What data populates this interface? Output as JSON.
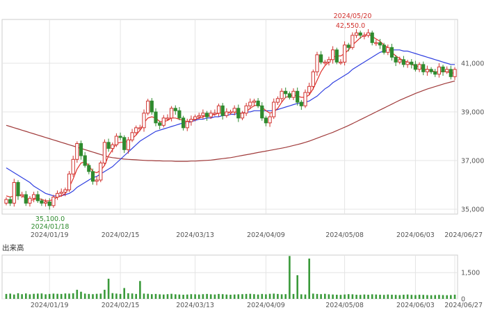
{
  "chart_data": [
    {
      "type": "candlestick",
      "x_ticks": [
        "2024/01/19",
        "2024/02/15",
        "2024/03/13",
        "2024/04/09",
        "2024/05/08",
        "2024/06/03",
        "2024/06/27"
      ],
      "y_ticks": [
        "35,000",
        "37,000",
        "39,000",
        "41,000"
      ],
      "ylim": [
        34800,
        42800
      ],
      "annotations": {
        "high": {
          "date": "2024/05/20",
          "value": "42,550.0"
        },
        "low": {
          "date": "2024/01/18",
          "value": "35,100.0"
        }
      },
      "close": [
        35400,
        35250,
        36100,
        35550,
        35600,
        35250,
        35450,
        35600,
        35350,
        35250,
        35300,
        35150,
        35500,
        35650,
        35700,
        35800,
        36450,
        37050,
        37700,
        37200,
        36800,
        36550,
        36150,
        36200,
        36900,
        37750,
        37500,
        37650,
        38000,
        37950,
        37450,
        37850,
        38150,
        38350,
        38350,
        38950,
        39450,
        39000,
        38550,
        38450,
        38750,
        38750,
        39150,
        39050,
        38750,
        38350,
        38600,
        38700,
        38800,
        38850,
        38950,
        38800,
        38950,
        38950,
        39250,
        38850,
        39000,
        39000,
        39150,
        38750,
        38950,
        39250,
        39400,
        39450,
        39250,
        38750,
        38550,
        38800,
        39400,
        39550,
        39850,
        39750,
        39600,
        39850,
        39400,
        39250,
        39800,
        40050,
        40650,
        41350,
        41050,
        41050,
        41150,
        41550,
        41050,
        41050,
        41750,
        41650,
        42150,
        42250,
        42150,
        42150,
        42250,
        41850,
        41850,
        41750,
        41450,
        41650,
        41250,
        41050,
        41150,
        40950,
        41050,
        40950,
        40750,
        40950,
        40650,
        40750,
        40650,
        40550,
        40850,
        40650,
        40750,
        40450,
        40750
      ],
      "ma_short": [
        35550,
        35500,
        35550,
        35600,
        35550,
        35450,
        35350,
        35400,
        35450,
        35400,
        35350,
        35350,
        35400,
        35500,
        35550,
        35650,
        35900,
        36250,
        36650,
        36900,
        36950,
        36800,
        36550,
        36500,
        36600,
        36800,
        37200,
        37450,
        37700,
        37750,
        37750,
        37800,
        37900,
        38050,
        38250,
        38550,
        38750,
        38800,
        38750,
        38600,
        38600,
        38650,
        38750,
        38750,
        38700,
        38650,
        38600,
        38650,
        38700,
        38750,
        38800,
        38850,
        38850,
        38900,
        38950,
        38950,
        38950,
        39000,
        39000,
        38950,
        38950,
        39000,
        39150,
        39250,
        39300,
        39200,
        39050,
        38950,
        39000,
        39150,
        39400,
        39600,
        39650,
        39700,
        39650,
        39600,
        39600,
        39700,
        39950,
        40300,
        40650,
        40900,
        41050,
        41250,
        41300,
        41300,
        41400,
        41550,
        41750,
        41900,
        42050,
        42150,
        42200,
        42100,
        42000,
        41900,
        41750,
        41650,
        41450,
        41300,
        41200,
        41100,
        41050,
        40950,
        40900,
        40850,
        40750,
        40750,
        40700,
        40650,
        40650,
        40650,
        40650,
        40600,
        40600
      ],
      "ma_mid": [
        36700,
        36600,
        36500,
        36400,
        36300,
        36200,
        36100,
        35950,
        35850,
        35750,
        35650,
        35600,
        35550,
        35550,
        35550,
        35600,
        35650,
        35750,
        35900,
        36000,
        36100,
        36200,
        36300,
        36350,
        36450,
        36550,
        36650,
        36750,
        36900,
        37050,
        37200,
        37350,
        37500,
        37650,
        37800,
        37900,
        38000,
        38100,
        38200,
        38250,
        38300,
        38350,
        38400,
        38450,
        38500,
        38550,
        38550,
        38600,
        38650,
        38700,
        38700,
        38750,
        38750,
        38800,
        38800,
        38850,
        38850,
        38900,
        38900,
        38950,
        38950,
        39000,
        39000,
        39050,
        39050,
        39050,
        39050,
        39050,
        39050,
        39100,
        39150,
        39200,
        39250,
        39300,
        39350,
        39350,
        39400,
        39450,
        39550,
        39650,
        39800,
        39950,
        40050,
        40200,
        40300,
        40400,
        40500,
        40600,
        40750,
        40850,
        40950,
        41050,
        41150,
        41250,
        41350,
        41450,
        41500,
        41550,
        41550,
        41550,
        41550,
        41500,
        41500,
        41450,
        41400,
        41350,
        41300,
        41250,
        41200,
        41150,
        41100,
        41050,
        41000,
        40950,
        40950
      ],
      "ma_long": [
        38450,
        38400,
        38350,
        38300,
        38250,
        38200,
        38150,
        38100,
        38050,
        38000,
        37950,
        37900,
        37850,
        37800,
        37750,
        37700,
        37650,
        37600,
        37550,
        37500,
        37450,
        37400,
        37350,
        37300,
        37250,
        37200,
        37150,
        37120,
        37100,
        37080,
        37060,
        37050,
        37040,
        37030,
        37020,
        37010,
        37000,
        37000,
        36990,
        36990,
        36980,
        36980,
        36980,
        36970,
        36970,
        36970,
        36970,
        36980,
        36980,
        36990,
        37000,
        37010,
        37020,
        37040,
        37060,
        37080,
        37100,
        37120,
        37150,
        37180,
        37210,
        37240,
        37270,
        37300,
        37330,
        37360,
        37390,
        37420,
        37450,
        37480,
        37510,
        37540,
        37580,
        37620,
        37660,
        37700,
        37750,
        37800,
        37860,
        37920,
        37980,
        38040,
        38100,
        38160,
        38230,
        38300,
        38370,
        38440,
        38520,
        38600,
        38680,
        38760,
        38840,
        38920,
        39000,
        39080,
        39160,
        39240,
        39320,
        39400,
        39480,
        39550,
        39620,
        39690,
        39760,
        39820,
        39880,
        39940,
        39990,
        40040,
        40090,
        40140,
        40190,
        40230,
        40270
      ]
    },
    {
      "type": "bar",
      "title": "出来高",
      "x_ticks": [
        "2024/01/19",
        "2024/02/15",
        "2024/03/13",
        "2024/04/09",
        "2024/05/08",
        "2024/06/03",
        "2024/06/27"
      ],
      "y_ticks": [
        "1,500",
        "0"
      ],
      "ylim": [
        0,
        2500
      ],
      "volume": [
        280,
        300,
        250,
        320,
        270,
        310,
        260,
        290,
        300,
        310,
        260,
        280,
        300,
        290,
        280,
        310,
        300,
        320,
        520,
        410,
        300,
        280,
        270,
        290,
        300,
        520,
        1150,
        330,
        300,
        280,
        620,
        320,
        310,
        280,
        1020,
        300,
        290,
        270,
        280,
        260,
        250,
        270,
        290,
        260,
        250,
        240,
        250,
        270,
        260,
        250,
        270,
        280,
        260,
        250,
        280,
        270,
        250,
        240,
        250,
        260,
        270,
        280,
        290,
        270,
        250,
        280,
        260,
        290,
        300,
        280,
        260,
        270,
        2450,
        280,
        1350,
        260,
        250,
        2300,
        300,
        280,
        270,
        290,
        260,
        250,
        240,
        230,
        250,
        270,
        260,
        240,
        230,
        250,
        240,
        260,
        250,
        240,
        230,
        250,
        240,
        230,
        220,
        240,
        250,
        230,
        220,
        240,
        230,
        220,
        210,
        220,
        230,
        220,
        210,
        220,
        240
      ]
    }
  ]
}
